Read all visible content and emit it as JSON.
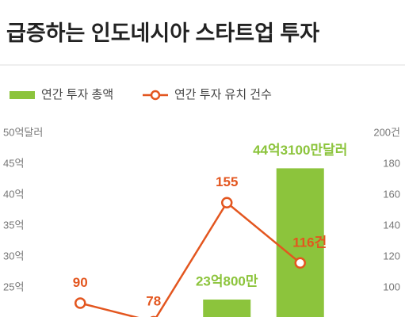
{
  "chart_data": {
    "type": "bar-line",
    "title": "급증하는 인도네시아 스타트업 투자",
    "categories": [
      null,
      null,
      null,
      null
    ],
    "series": [
      {
        "name": "연간 투자 총액",
        "type": "bar",
        "color": "#8cc43c",
        "values": [
          null,
          null,
          23.08,
          44.31
        ],
        "value_labels": [
          null,
          null,
          "23억800만",
          "44억3100만달러"
        ]
      },
      {
        "name": "연간 투자 유치 건수",
        "type": "line",
        "axis": "y2",
        "color": "#e3561f",
        "values": [
          90,
          78,
          155,
          116
        ],
        "value_labels": [
          null,
          null,
          null,
          "116건"
        ]
      }
    ],
    "ylim": [
      20,
      50
    ],
    "yticks": [
      {
        "value": 25,
        "label": "25억"
      },
      {
        "value": 30,
        "label": "30억"
      },
      {
        "value": 35,
        "label": "35억"
      },
      {
        "value": 40,
        "label": "40억"
      },
      {
        "value": 45,
        "label": "45억"
      },
      {
        "value": 50,
        "label": "50억달러"
      }
    ],
    "y2lim": [
      80,
      200
    ],
    "y2ticks": [
      100,
      120,
      140,
      160,
      180,
      {
        "value": 200,
        "label": "200건"
      }
    ],
    "legend": "top-left"
  }
}
